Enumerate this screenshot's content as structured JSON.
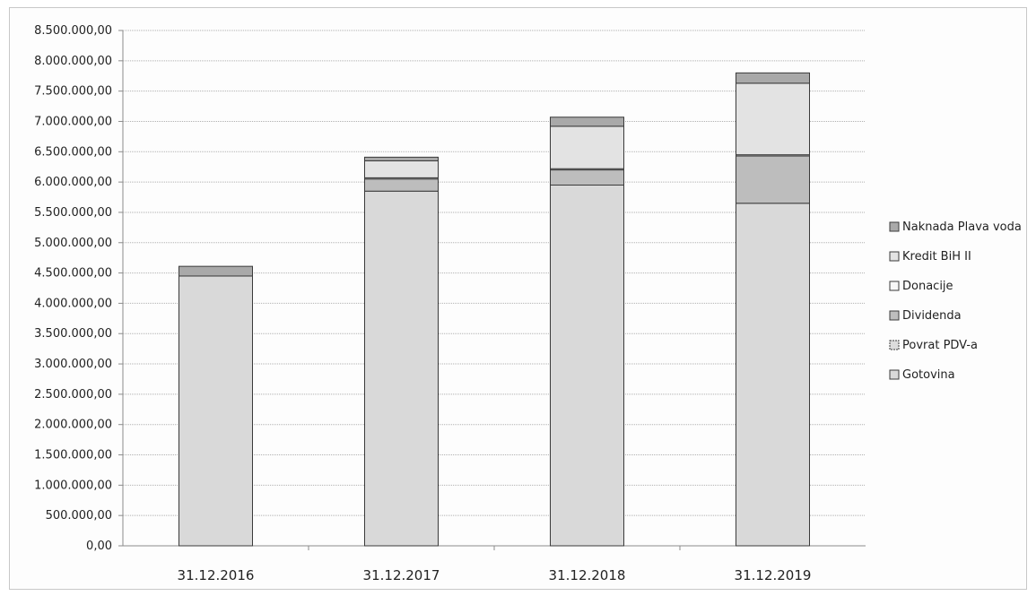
{
  "chart_data": {
    "type": "bar",
    "stacked": true,
    "title": "",
    "xlabel": "",
    "ylabel": "",
    "ylim": [
      0,
      8500000
    ],
    "y_ticks": [
      "0,00",
      "500.000,00",
      "1.000.000,00",
      "1.500.000,00",
      "2.000.000,00",
      "2.500.000,00",
      "3.000.000,00",
      "3.500.000,00",
      "4.000.000,00",
      "4.500.000,00",
      "5.000.000,00",
      "5.500.000,00",
      "6.000.000,00",
      "6.500.000,00",
      "7.000.000,00",
      "7.500.000,00",
      "8.000.000,00",
      "8.500.000,00"
    ],
    "grid": true,
    "legend_position": "right",
    "categories": [
      "31.12.2016",
      "31.12.2017",
      "31.12.2018",
      "31.12.2019"
    ],
    "series": [
      {
        "name": "Gotovina",
        "color": "#d9d9d9",
        "values": [
          4450000,
          5850000,
          5950000,
          5650000
        ]
      },
      {
        "name": "Povrat PDV-a",
        "color": "#dcdcdc",
        "values": [
          0,
          0,
          0,
          0
        ]
      },
      {
        "name": "Dividenda",
        "color": "#bdbdbd",
        "values": [
          0,
          200000,
          250000,
          780000
        ]
      },
      {
        "name": "Donacije",
        "color": "#f7f7f7",
        "values": [
          0,
          20000,
          20000,
          20000
        ]
      },
      {
        "name": "Kredit BiH II",
        "color": "#e3e3e3",
        "values": [
          0,
          280000,
          700000,
          1180000
        ]
      },
      {
        "name": "Naknada Plava voda",
        "color": "#a9a9a9",
        "values": [
          160000,
          60000,
          150000,
          170000
        ]
      }
    ],
    "legend_order": [
      "Naknada Plava voda",
      "Kredit BiH II",
      "Donacije",
      "Dividenda",
      "Povrat PDV-a",
      "Gotovina"
    ]
  }
}
